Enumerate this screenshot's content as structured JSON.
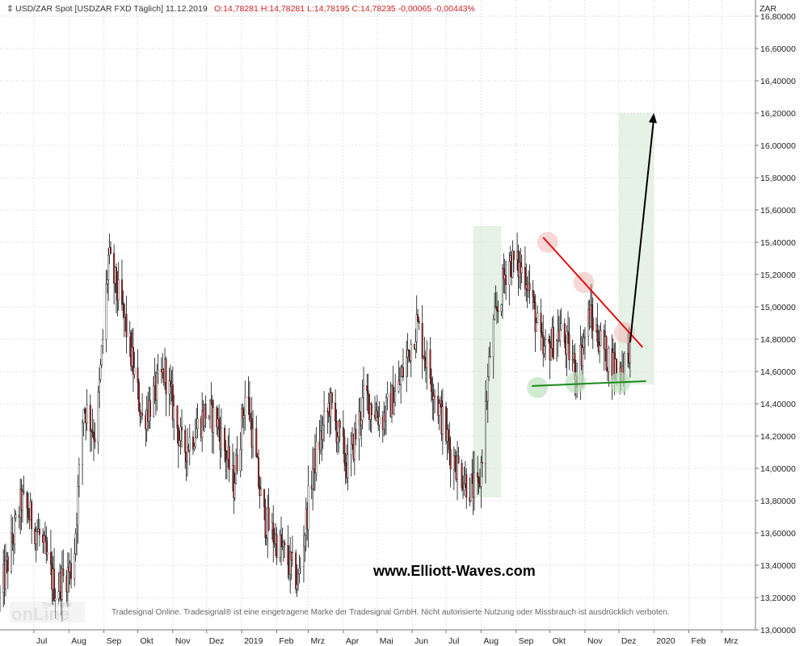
{
  "header": {
    "instrument": "USD/ZAR Spot [USDZAR FXD  Täglich] 11.12.2019",
    "ohlc": "O:14,78281 H:14,78281 L:14,78195 C:14,78235 -0,00065 -0,00443%"
  },
  "chart_data": {
    "type": "candlestick",
    "y_unit": "ZAR",
    "ylim": [
      13.0,
      16.9
    ],
    "y_ticks": [
      "16,80000",
      "16,60000",
      "16,40000",
      "16,20000",
      "16,00000",
      "15,80000",
      "15,60000",
      "15,40000",
      "15,20000",
      "15,00000",
      "14,80000",
      "14,60000",
      "14,40000",
      "14,20000",
      "14,00000",
      "13,80000",
      "13,60000",
      "13,40000",
      "13,20000",
      "13,00000"
    ],
    "x_labels": [
      "Jul",
      "Aug",
      "Sep",
      "Okt",
      "Nov",
      "Dez",
      "2019",
      "Feb",
      "Mrz",
      "Apr",
      "Mai",
      "Jun",
      "Jul",
      "Aug",
      "Sep",
      "Okt",
      "Nov",
      "Dez",
      "2020",
      "Feb",
      "Mrz"
    ],
    "x_range": [
      "2018-06-01",
      "2020-03-31"
    ],
    "price_path": [
      [
        "2018-06-01",
        13.2
      ],
      [
        "2018-06-20",
        13.8
      ],
      [
        "2018-07-05",
        13.6
      ],
      [
        "2018-07-20",
        13.25
      ],
      [
        "2018-08-05",
        13.4
      ],
      [
        "2018-08-14",
        14.4
      ],
      [
        "2018-08-25",
        14.2
      ],
      [
        "2018-09-05",
        15.3
      ],
      [
        "2018-09-20",
        14.9
      ],
      [
        "2018-10-05",
        14.3
      ],
      [
        "2018-10-25",
        14.6
      ],
      [
        "2018-11-10",
        14.1
      ],
      [
        "2018-11-30",
        14.35
      ],
      [
        "2018-12-10",
        14.3
      ],
      [
        "2018-12-25",
        13.9
      ],
      [
        "2019-01-05",
        14.5
      ],
      [
        "2019-01-20",
        13.7
      ],
      [
        "2019-02-05",
        13.5
      ],
      [
        "2019-02-20",
        13.3
      ],
      [
        "2019-03-05",
        14.0
      ],
      [
        "2019-03-20",
        14.4
      ],
      [
        "2019-04-05",
        14.0
      ],
      [
        "2019-04-20",
        14.45
      ],
      [
        "2019-05-05",
        14.3
      ],
      [
        "2019-05-20",
        14.5
      ],
      [
        "2019-06-05",
        14.9
      ],
      [
        "2019-06-20",
        14.5
      ],
      [
        "2019-07-05",
        14.1
      ],
      [
        "2019-07-20",
        13.9
      ],
      [
        "2019-07-30",
        13.85
      ],
      [
        "2019-08-10",
        14.8
      ],
      [
        "2019-08-25",
        15.3
      ],
      [
        "2019-09-10",
        15.2
      ],
      [
        "2019-09-25",
        14.7
      ],
      [
        "2019-10-10",
        14.85
      ],
      [
        "2019-10-25",
        14.6
      ],
      [
        "2019-11-05",
        14.95
      ],
      [
        "2019-11-20",
        14.7
      ],
      [
        "2019-12-02",
        14.6
      ],
      [
        "2019-12-11",
        14.78
      ]
    ],
    "annotations": {
      "resistance_line": [
        [
          "2019-09-25",
          15.43
        ],
        [
          "2019-12-22",
          14.75
        ]
      ],
      "support_line": [
        [
          "2019-09-15",
          14.51
        ],
        [
          "2019-12-25",
          14.54
        ]
      ],
      "projection_arrow": [
        [
          "2019-12-11",
          14.78
        ],
        [
          "2020-01-01",
          16.2
        ]
      ],
      "box_left": {
        "x": [
          "2019-07-25",
          "2019-08-19"
        ],
        "y": [
          13.82,
          15.5
        ]
      },
      "box_right": {
        "x": [
          "2019-12-01",
          "2020-01-01"
        ],
        "y": [
          14.52,
          16.2
        ]
      },
      "top_circles": [
        [
          "2019-09-29",
          15.4
        ],
        [
          "2019-10-31",
          15.15
        ],
        [
          "2019-12-06",
          14.84
        ]
      ],
      "bottom_circles": [
        [
          "2019-09-20",
          14.5
        ],
        [
          "2019-10-24",
          14.53
        ],
        [
          "2019-12-02",
          14.53
        ]
      ]
    }
  },
  "watermark": "www.Elliott-Waves.com",
  "footer": "Tradesignal Online. Tradesignal® ist eine eingetragene Marke der Tradesignal GmbH. Nicht autorisierte Nutzung oder Missbrauch ist ausdrücklich verboten.",
  "logo": "Tradesignal online"
}
